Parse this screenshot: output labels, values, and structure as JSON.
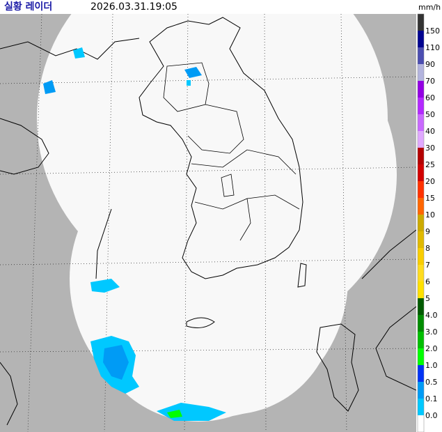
{
  "header": {
    "title": "실황 레이더",
    "time": "2026.03.31.19:05"
  },
  "legend": {
    "unit": "mm/h",
    "top_color": "#333333",
    "items": [
      {
        "label": "150",
        "color": "#000390"
      },
      {
        "label": "110",
        "color": "#4c4eb1"
      },
      {
        "label": "90",
        "color": "#b3b4de"
      },
      {
        "label": "70",
        "color": "#9300e4"
      },
      {
        "label": "60",
        "color": "#b329ff"
      },
      {
        "label": "50",
        "color": "#c969ff"
      },
      {
        "label": "40",
        "color": "#e0a9ff"
      },
      {
        "label": "30",
        "color": "#b40000"
      },
      {
        "label": "25",
        "color": "#d20000"
      },
      {
        "label": "20",
        "color": "#ff3200"
      },
      {
        "label": "15",
        "color": "#ff6600"
      },
      {
        "label": "10",
        "color": "#ccaa00"
      },
      {
        "label": "9",
        "color": "#e0b900"
      },
      {
        "label": "8",
        "color": "#f9cd00"
      },
      {
        "label": "7",
        "color": "#ffdc1f"
      },
      {
        "label": "6",
        "color": "#ffe100"
      },
      {
        "label": "5",
        "color": "#005a00"
      },
      {
        "label": "4.0",
        "color": "#008c00"
      },
      {
        "label": "3.0",
        "color": "#00be00"
      },
      {
        "label": "2.0",
        "color": "#00ff00"
      },
      {
        "label": "1.0",
        "color": "#0033f5"
      },
      {
        "label": "0.5",
        "color": "#009bf5"
      },
      {
        "label": "0.1",
        "color": "#00c8ff"
      },
      {
        "label": "0.0",
        "color": "#ffffff"
      }
    ]
  }
}
